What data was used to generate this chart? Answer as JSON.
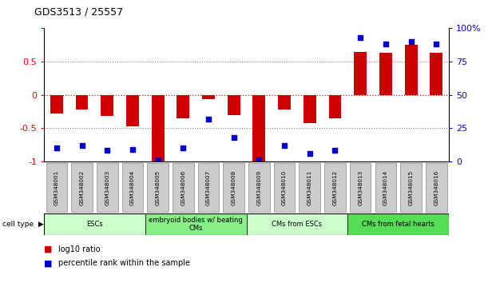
{
  "title": "GDS3513 / 25557",
  "samples": [
    "GSM348001",
    "GSM348002",
    "GSM348003",
    "GSM348004",
    "GSM348005",
    "GSM348006",
    "GSM348007",
    "GSM348008",
    "GSM348009",
    "GSM348010",
    "GSM348011",
    "GSM348012",
    "GSM348013",
    "GSM348014",
    "GSM348015",
    "GSM348016"
  ],
  "log10_ratio": [
    -0.28,
    -0.22,
    -0.32,
    -0.47,
    -1.0,
    -0.35,
    -0.07,
    -0.3,
    -1.0,
    -0.22,
    -0.42,
    -0.35,
    0.65,
    0.63,
    0.75,
    0.63
  ],
  "percentile_rank": [
    10,
    12,
    8,
    9,
    1,
    10,
    32,
    18,
    1,
    12,
    6,
    8,
    93,
    88,
    90,
    88
  ],
  "cell_type_groups": [
    {
      "label": "ESCs",
      "start": 0,
      "end": 3,
      "color": "#ccffcc"
    },
    {
      "label": "embryoid bodies w/ beating\nCMs",
      "start": 4,
      "end": 7,
      "color": "#88ee88"
    },
    {
      "label": "CMs from ESCs",
      "start": 8,
      "end": 11,
      "color": "#ccffcc"
    },
    {
      "label": "CMs from fetal hearts",
      "start": 12,
      "end": 15,
      "color": "#55dd55"
    }
  ],
  "bar_color": "#cc0000",
  "dot_color": "#0000cc",
  "left_ylim": [
    -1,
    1
  ],
  "right_ylim": [
    0,
    100
  ],
  "left_yticks": [
    -1,
    -0.5,
    0,
    0.5,
    1
  ],
  "left_yticklabels": [
    "-1",
    "-0.5",
    "0",
    "0.5",
    ""
  ],
  "right_yticks": [
    0,
    25,
    50,
    75,
    100
  ],
  "right_yticklabels": [
    "0",
    "25",
    "50",
    "75",
    "100%"
  ],
  "background_color": "#ffffff",
  "plot_bg_color": "#ffffff",
  "sample_box_color": "#cccccc",
  "sample_box_edge_color": "#888888"
}
